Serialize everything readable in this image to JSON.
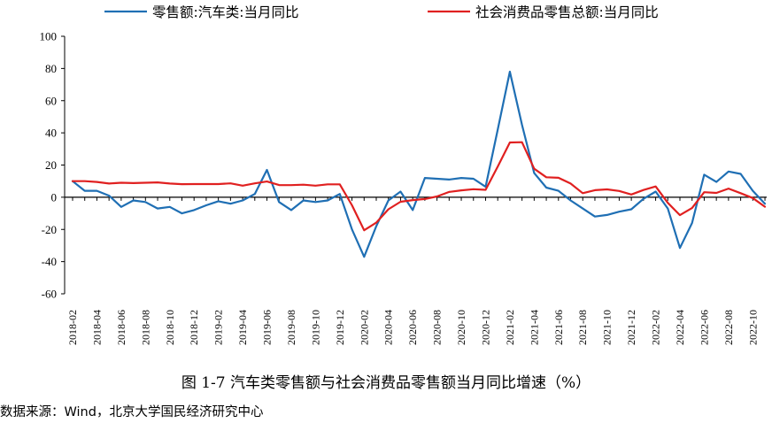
{
  "chart_data": {
    "type": "line",
    "title": "",
    "caption": "图 1-7 汽车类零售额与社会消费品零售额当月同比增速（%）",
    "source": "数据来源：Wind，北京大学国民经济研究中心",
    "ylim": [
      -60,
      100
    ],
    "yticks": [
      "100",
      "80",
      "60",
      "40",
      "20",
      "0",
      "-20",
      "-40",
      "-60"
    ],
    "ytick_values": [
      100,
      80,
      60,
      40,
      20,
      0,
      -20,
      -40,
      -60
    ],
    "x": [
      "2018-02",
      "2018-03",
      "2018-04",
      "2018-05",
      "2018-06",
      "2018-07",
      "2018-08",
      "2018-09",
      "2018-10",
      "2018-11",
      "2018-12",
      "2019-01",
      "2019-02",
      "2019-03",
      "2019-04",
      "2019-05",
      "2019-06",
      "2019-07",
      "2019-08",
      "2019-09",
      "2019-10",
      "2019-11",
      "2019-12",
      "2020-01",
      "2020-02",
      "2020-03",
      "2020-04",
      "2020-05",
      "2020-06",
      "2020-07",
      "2020-08",
      "2020-09",
      "2020-10",
      "2020-11",
      "2020-12",
      "2021-01",
      "2021-02",
      "2021-03",
      "2021-04",
      "2021-05",
      "2021-06",
      "2021-07",
      "2021-08",
      "2021-09",
      "2021-10",
      "2021-11",
      "2021-12",
      "2022-01",
      "2022-02",
      "2022-03",
      "2022-04",
      "2022-05",
      "2022-06",
      "2022-07",
      "2022-08",
      "2022-09",
      "2022-10",
      "2022-11"
    ],
    "xtick_labels": [
      "2018-02",
      "2018-04",
      "2018-06",
      "2018-08",
      "2018-10",
      "2018-12",
      "2019-02",
      "2019-04",
      "2019-06",
      "2019-08",
      "2019-10",
      "2019-12",
      "2020-02",
      "2020-04",
      "2020-06",
      "2020-08",
      "2020-10",
      "2020-12",
      "2021-02",
      "2021-04",
      "2021-06",
      "2021-08",
      "2021-10",
      "2021-12",
      "2022-02",
      "2022-04",
      "2022-06",
      "2022-08",
      "2022-10"
    ],
    "legend_position": "top",
    "grid": false,
    "series": [
      {
        "name": "零售额:汽车类:当月同比",
        "color": "#1f6fb4",
        "values": [
          10,
          4,
          4,
          1,
          -6,
          -2,
          -3,
          -7,
          -6,
          -10,
          -8,
          -5,
          -2.5,
          -4,
          -2,
          2,
          17,
          -3,
          -8,
          -2,
          -3,
          -2,
          2,
          -20,
          -37,
          -18,
          -2,
          3.5,
          -8,
          12,
          11.5,
          11,
          12,
          11.5,
          6.5,
          42,
          78,
          45,
          15,
          6,
          4,
          -2,
          -7,
          -12,
          -11,
          -9,
          -7.5,
          -1,
          3.5,
          -7,
          -31.5,
          -16,
          14,
          9.5,
          16,
          14.5,
          4,
          -4
        ]
      },
      {
        "name": "社会消费品零售总额:当月同比",
        "color": "#e02020",
        "values": [
          10,
          10,
          9.5,
          8.5,
          9,
          8.8,
          9,
          9.2,
          8.5,
          8.1,
          8.2,
          8.2,
          8.2,
          8.6,
          7.2,
          8.6,
          9.8,
          7.6,
          7.5,
          7.8,
          7.2,
          8,
          8,
          -5,
          -20.5,
          -15.8,
          -7.5,
          -2.8,
          -1.8,
          -1.1,
          0.5,
          3.3,
          4.3,
          5,
          4.6,
          19,
          34,
          34.2,
          17.7,
          12.4,
          12.1,
          8.5,
          2.5,
          4.4,
          4.9,
          3.9,
          1.7,
          4.5,
          6.7,
          -3.5,
          -11.1,
          -6.7,
          3.1,
          2.7,
          5.4,
          2.5,
          -0.5,
          -5.9
        ]
      }
    ]
  }
}
